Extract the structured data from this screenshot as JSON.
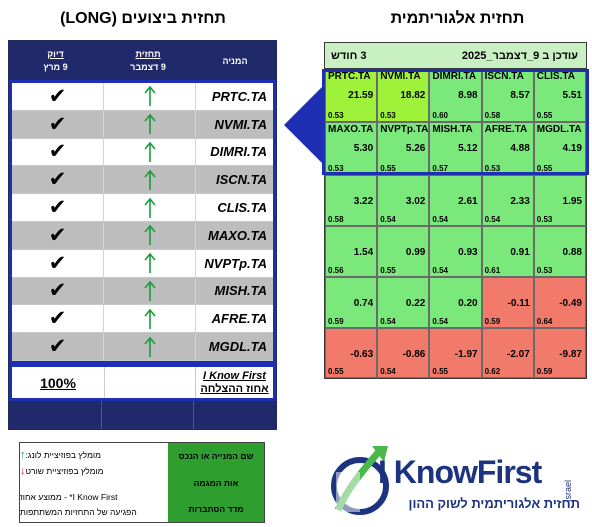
{
  "titles": {
    "algorithmic_forecast": "תחזית אלגוריתמית",
    "performance_forecast": "תחזית ביצועים (LONG)"
  },
  "heatmap": {
    "horizon": "3 חודש",
    "updated": "עודכן ב 9_דצמבר_2025",
    "rows": [
      [
        {
          "ticker": "PRTC.TA",
          "value": "21.59",
          "acc": "0.53",
          "color": "#9ef23a"
        },
        {
          "ticker": "NVMI.TA",
          "value": "18.82",
          "acc": "0.53",
          "color": "#9ef23a"
        },
        {
          "ticker": "DIMRI.TA",
          "value": "8.98",
          "acc": "0.60",
          "color": "#7be87b"
        },
        {
          "ticker": "ISCN.TA",
          "value": "8.57",
          "acc": "0.58",
          "color": "#7be87b"
        },
        {
          "ticker": "CLIS.TA",
          "value": "5.51",
          "acc": "0.55",
          "color": "#7be87b"
        }
      ],
      [
        {
          "ticker": "MAXO.TA",
          "value": "5.30",
          "acc": "0.53",
          "color": "#7be87b"
        },
        {
          "ticker": "NVPTp.TA",
          "value": "5.26",
          "acc": "0.55",
          "color": "#7be87b"
        },
        {
          "ticker": "MISH.TA",
          "value": "5.12",
          "acc": "0.57",
          "color": "#7be87b"
        },
        {
          "ticker": "AFRE.TA",
          "value": "4.88",
          "acc": "0.53",
          "color": "#7be87b"
        },
        {
          "ticker": "MGDL.TA",
          "value": "4.19",
          "acc": "0.55",
          "color": "#7be87b"
        }
      ],
      [
        {
          "ticker": "",
          "value": "3.22",
          "acc": "0.58",
          "color": "#7be87b"
        },
        {
          "ticker": "",
          "value": "3.02",
          "acc": "0.54",
          "color": "#7be87b"
        },
        {
          "ticker": "",
          "value": "2.61",
          "acc": "0.54",
          "color": "#7be87b"
        },
        {
          "ticker": "",
          "value": "2.33",
          "acc": "0.54",
          "color": "#7be87b"
        },
        {
          "ticker": "",
          "value": "1.95",
          "acc": "0.53",
          "color": "#7be87b"
        }
      ],
      [
        {
          "ticker": "",
          "value": "1.54",
          "acc": "0.56",
          "color": "#7be87b"
        },
        {
          "ticker": "",
          "value": "0.99",
          "acc": "0.55",
          "color": "#7be87b"
        },
        {
          "ticker": "",
          "value": "0.93",
          "acc": "0.54",
          "color": "#7be87b"
        },
        {
          "ticker": "",
          "value": "0.91",
          "acc": "0.61",
          "color": "#7be87b"
        },
        {
          "ticker": "",
          "value": "0.88",
          "acc": "0.53",
          "color": "#7be87b"
        }
      ],
      [
        {
          "ticker": "",
          "value": "0.74",
          "acc": "0.59",
          "color": "#7be87b"
        },
        {
          "ticker": "",
          "value": "0.22",
          "acc": "0.54",
          "color": "#7be87b"
        },
        {
          "ticker": "",
          "value": "0.20",
          "acc": "0.54",
          "color": "#7be87b"
        },
        {
          "ticker": "",
          "value": "-0.11",
          "acc": "0.59",
          "color": "#f27a6a"
        },
        {
          "ticker": "",
          "value": "-0.49",
          "acc": "0.64",
          "color": "#f27a6a"
        }
      ],
      [
        {
          "ticker": "",
          "value": "-0.63",
          "acc": "0.55",
          "color": "#f27a6a"
        },
        {
          "ticker": "",
          "value": "-0.86",
          "acc": "0.54",
          "color": "#f27a6a"
        },
        {
          "ticker": "",
          "value": "-1.97",
          "acc": "0.55",
          "color": "#f27a6a"
        },
        {
          "ticker": "",
          "value": "-2.07",
          "acc": "0.62",
          "color": "#f27a6a"
        },
        {
          "ticker": "",
          "value": "-9.87",
          "acc": "0.59",
          "color": "#f27a6a"
        }
      ]
    ]
  },
  "performance": {
    "header": {
      "accuracy_title": "דיוק",
      "accuracy_date": "9 מרץ",
      "forecast_title": "תחזית",
      "forecast_date": "9 דצמבר",
      "company": "המניה"
    },
    "rows": [
      {
        "ticker": "PRTC.TA",
        "check": "✔"
      },
      {
        "ticker": "NVMI.TA",
        "check": "✔"
      },
      {
        "ticker": "DIMRI.TA",
        "check": "✔"
      },
      {
        "ticker": "ISCN.TA",
        "check": "✔"
      },
      {
        "ticker": "CLIS.TA",
        "check": "✔"
      },
      {
        "ticker": "MAXO.TA",
        "check": "✔"
      },
      {
        "ticker": "NVPTp.TA",
        "check": "✔"
      },
      {
        "ticker": "MISH.TA",
        "check": "✔"
      },
      {
        "ticker": "AFRE.TA",
        "check": "✔"
      },
      {
        "ticker": "MGDL.TA",
        "check": "✔"
      }
    ],
    "summary": {
      "percent": "100%",
      "brand": "I Know First",
      "label": "אחוז ההצלחה"
    }
  },
  "legend": {
    "items": [
      {
        "right": "שם המנייה או הנכס",
        "left_arrow": "↑",
        "left": "מומלץ בפוזיציית לונג:"
      },
      {
        "right": "אות המגמה",
        "left_arrow": "↓",
        "left": "מומלץ בפוזיציית שורט"
      },
      {
        "right": "מדד הסתברות",
        "left_top": "I Know First* - ממוצע אחוז",
        "left": "הפגיעה של התחזיות המשתתפות"
      }
    ]
  },
  "logo": {
    "brand": "I KnowFirst",
    "country": "Israel",
    "tagline": "תחזית אלגוריתמית לשוק ההון"
  },
  "colors": {
    "navy": "#202a6b",
    "highlight_border": "#1f2fb3",
    "strong_green": "#9ef23a",
    "green": "#7be87b",
    "red": "#f27a6a",
    "up_arrow": "#1a9c3a"
  }
}
